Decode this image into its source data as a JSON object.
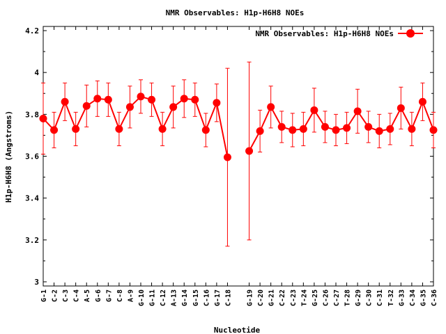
{
  "chart_data": {
    "type": "line",
    "title": "NMR Observables: H1p-H6H8 NOEs",
    "xlabel": "Nucleotide",
    "ylabel": "H1p-H6H8 (Angstroms)",
    "ylim": [
      2.98,
      4.22
    ],
    "yticks": [
      3,
      3.2,
      3.4,
      3.6,
      3.8,
      4,
      4.2
    ],
    "grid": false,
    "legend_position": "top-right",
    "series": [
      {
        "name": "NMR Observables: H1p-H6H8 NOEs",
        "color": "#ff0000",
        "points": [
          {
            "x": 1,
            "label": "G-1",
            "value": 3.78,
            "err": 0.17
          },
          {
            "x": 2,
            "label": "C-2",
            "value": 3.725,
            "err": 0.085
          },
          {
            "x": 3,
            "label": "C-3",
            "value": 3.86,
            "err": 0.09
          },
          {
            "x": 4,
            "label": "C-4",
            "value": 3.73,
            "err": 0.08
          },
          {
            "x": 5,
            "label": "A-5",
            "value": 3.84,
            "err": 0.1
          },
          {
            "x": 6,
            "label": "G-6",
            "value": 3.875,
            "err": 0.085
          },
          {
            "x": 7,
            "label": "G-7",
            "value": 3.87,
            "err": 0.08
          },
          {
            "x": 8,
            "label": "C-8",
            "value": 3.73,
            "err": 0.08
          },
          {
            "x": 9,
            "label": "A-9",
            "value": 3.835,
            "err": 0.1
          },
          {
            "x": 10,
            "label": "G-10",
            "value": 3.885,
            "err": 0.08
          },
          {
            "x": 11,
            "label": "G-11",
            "value": 3.87,
            "err": 0.08
          },
          {
            "x": 12,
            "label": "C-12",
            "value": 3.73,
            "err": 0.08
          },
          {
            "x": 13,
            "label": "A-13",
            "value": 3.835,
            "err": 0.1
          },
          {
            "x": 14,
            "label": "G-14",
            "value": 3.875,
            "err": 0.09
          },
          {
            "x": 15,
            "label": "G-15",
            "value": 3.87,
            "err": 0.08
          },
          {
            "x": 16,
            "label": "C-16",
            "value": 3.725,
            "err": 0.08
          },
          {
            "x": 17,
            "label": "G-17",
            "value": 3.855,
            "err": 0.09
          },
          {
            "x": 18,
            "label": "C-18",
            "value": 3.595,
            "err": 0.425
          },
          {
            "x": 20,
            "label": "G-19",
            "value": 3.625,
            "err": 0.425
          },
          {
            "x": 21,
            "label": "C-20",
            "value": 3.72,
            "err": 0.1
          },
          {
            "x": 22,
            "label": "G-21",
            "value": 3.835,
            "err": 0.1
          },
          {
            "x": 23,
            "label": "C-22",
            "value": 3.74,
            "err": 0.075
          },
          {
            "x": 24,
            "label": "C-23",
            "value": 3.725,
            "err": 0.08
          },
          {
            "x": 25,
            "label": "T-24",
            "value": 3.73,
            "err": 0.08
          },
          {
            "x": 26,
            "label": "G-25",
            "value": 3.82,
            "err": 0.105
          },
          {
            "x": 27,
            "label": "C-26",
            "value": 3.74,
            "err": 0.075
          },
          {
            "x": 28,
            "label": "C-27",
            "value": 3.725,
            "err": 0.075
          },
          {
            "x": 29,
            "label": "T-28",
            "value": 3.735,
            "err": 0.075
          },
          {
            "x": 30,
            "label": "G-29",
            "value": 3.815,
            "err": 0.105
          },
          {
            "x": 31,
            "label": "C-30",
            "value": 3.74,
            "err": 0.075
          },
          {
            "x": 32,
            "label": "C-31",
            "value": 3.72,
            "err": 0.08
          },
          {
            "x": 33,
            "label": "T-32",
            "value": 3.73,
            "err": 0.075
          },
          {
            "x": 34,
            "label": "G-33",
            "value": 3.83,
            "err": 0.1
          },
          {
            "x": 35,
            "label": "C-34",
            "value": 3.73,
            "err": 0.08
          },
          {
            "x": 36,
            "label": "G-35",
            "value": 3.86,
            "err": 0.09
          },
          {
            "x": 37,
            "label": "C-36",
            "value": 3.725,
            "err": 0.085
          }
        ]
      }
    ]
  }
}
